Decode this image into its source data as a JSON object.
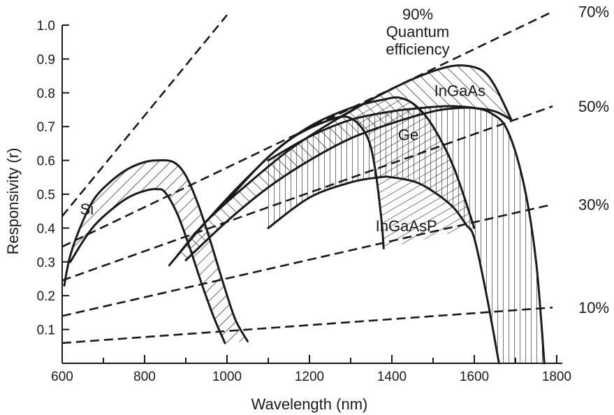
{
  "chart_data": {
    "type": "line",
    "xlabel": "Wavelength (nm)",
    "ylabel": "Responsivity (r)",
    "xlim": [
      600,
      1800
    ],
    "ylim": [
      0,
      1.0
    ],
    "xticks": [
      "600",
      "800",
      "1000",
      "1200",
      "1400",
      "1600",
      "1800"
    ],
    "yticks": [
      "0.1",
      "0.2",
      "0.3",
      "0.4",
      "0.5",
      "0.6",
      "0.7",
      "0.8",
      "0.9",
      "1.0"
    ],
    "grid": false,
    "qe_lines": [
      {
        "label": "90%",
        "x": [
          600,
          1000
        ],
        "y": [
          0.435,
          1.03
        ],
        "label_lines": [
          "90%",
          "Quantum",
          "efficiency"
        ]
      },
      {
        "label": "70%",
        "x": [
          600,
          1790
        ],
        "y": [
          0.345,
          1.04
        ]
      },
      {
        "label": "50%",
        "x": [
          600,
          1790
        ],
        "y": [
          0.245,
          0.76
        ]
      },
      {
        "label": "30%",
        "x": [
          600,
          1790
        ],
        "y": [
          0.14,
          0.47
        ]
      },
      {
        "label": "10%",
        "x": [
          600,
          1790
        ],
        "y": [
          0.06,
          0.165
        ]
      }
    ],
    "bands": [
      {
        "name": "Si",
        "hatch": "diagonal",
        "upper": {
          "x": [
            605,
            620,
            650,
            680,
            720,
            760,
            800,
            830,
            870,
            900,
            930,
            960,
            990,
            1020,
            1050
          ],
          "y": [
            0.23,
            0.32,
            0.42,
            0.49,
            0.54,
            0.575,
            0.595,
            0.6,
            0.595,
            0.555,
            0.47,
            0.36,
            0.24,
            0.13,
            0.065
          ]
        },
        "lower": {
          "x": [
            620,
            650,
            680,
            720,
            760,
            800,
            830,
            850,
            880,
            910,
            940,
            970,
            995
          ],
          "y": [
            0.3,
            0.36,
            0.41,
            0.455,
            0.49,
            0.51,
            0.515,
            0.505,
            0.44,
            0.34,
            0.23,
            0.13,
            0.06
          ]
        }
      },
      {
        "name": "Ge",
        "hatch": "vertical",
        "upper": {
          "x": [
            1100,
            1200,
            1300,
            1400,
            1470,
            1520,
            1560,
            1600,
            1640,
            1680,
            1720,
            1750,
            1770
          ],
          "y": [
            0.6,
            0.67,
            0.72,
            0.745,
            0.755,
            0.76,
            0.76,
            0.755,
            0.74,
            0.69,
            0.53,
            0.3,
            0.0
          ]
        },
        "lower": {
          "x": [
            1100,
            1200,
            1300,
            1370,
            1400,
            1460,
            1510,
            1550,
            1580,
            1600,
            1630,
            1660
          ],
          "y": [
            0.4,
            0.49,
            0.535,
            0.55,
            0.55,
            0.535,
            0.5,
            0.46,
            0.41,
            0.37,
            0.2,
            0.0
          ]
        }
      },
      {
        "name": "InGaAs",
        "hatch": "diagonal-rev",
        "upper": {
          "x": [
            880,
            950,
            1050,
            1150,
            1250,
            1350,
            1450,
            1530,
            1580,
            1620,
            1650,
            1690
          ],
          "y": [
            0.32,
            0.42,
            0.53,
            0.63,
            0.71,
            0.78,
            0.84,
            0.875,
            0.88,
            0.865,
            0.82,
            0.72
          ]
        },
        "lower": {
          "x": [
            900,
            1000,
            1100,
            1200,
            1300,
            1400,
            1500,
            1560,
            1600,
            1650,
            1690
          ],
          "y": [
            0.305,
            0.42,
            0.52,
            0.6,
            0.665,
            0.71,
            0.745,
            0.755,
            0.755,
            0.745,
            0.72
          ]
        }
      },
      {
        "name": "InGaAsP",
        "hatch": "crosshatch",
        "upper": {
          "x": [
            860,
            950,
            1050,
            1150,
            1250,
            1300,
            1340,
            1360,
            1375,
            1380
          ],
          "y": [
            0.29,
            0.42,
            0.55,
            0.66,
            0.72,
            0.725,
            0.67,
            0.57,
            0.42,
            0.34
          ]
        },
        "lower": {
          "x": [
            1000,
            1100,
            1200,
            1300,
            1380,
            1420,
            1460,
            1500,
            1550,
            1600
          ],
          "y": [
            0.48,
            0.61,
            0.7,
            0.755,
            0.78,
            0.785,
            0.76,
            0.7,
            0.58,
            0.4
          ]
        }
      }
    ],
    "annotations": [
      {
        "text": "Si",
        "x": 660,
        "y": 0.44
      },
      {
        "text": "InGaAs",
        "x": 1565,
        "y": 0.79
      },
      {
        "text": "Ge",
        "x": 1440,
        "y": 0.66
      },
      {
        "text": "InGaAsP",
        "x": 1435,
        "y": 0.39
      }
    ]
  }
}
